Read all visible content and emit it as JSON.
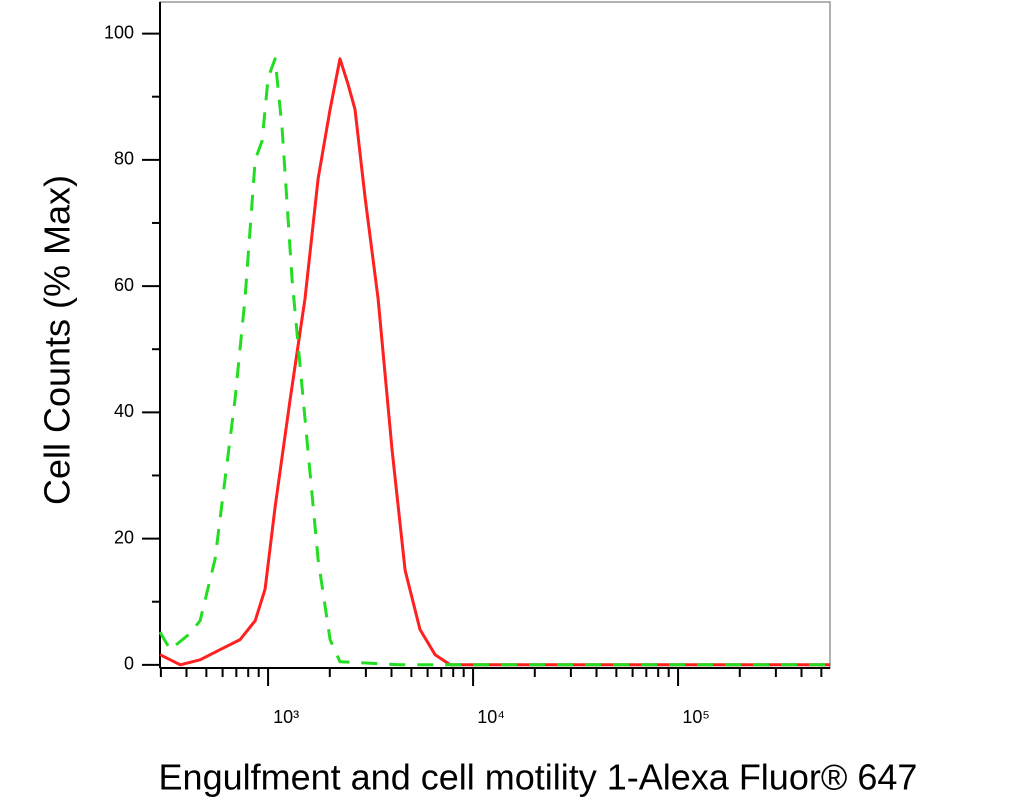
{
  "chart_data": {
    "type": "line",
    "xlabel": "Engulfment and cell motility 1-Alexa Fluor® 647",
    "ylabel": "Cell Counts (% Max)",
    "xscale": "log",
    "xlim": [
      297,
      551000
    ],
    "ylim": [
      -0.5,
      105
    ],
    "xticks": [
      {
        "value": 1000,
        "label": "10³"
      },
      {
        "value": 10000,
        "label": "10⁴"
      },
      {
        "value": 100000,
        "label": "10⁵"
      }
    ],
    "xminorticks": [
      300,
      400,
      500,
      600,
      700,
      800,
      900,
      2000,
      3000,
      4000,
      5000,
      6000,
      7000,
      8000,
      9000,
      20000,
      30000,
      40000,
      50000,
      60000,
      70000,
      80000,
      90000,
      200000,
      300000,
      400000,
      500000
    ],
    "yticks": [
      0,
      20,
      40,
      60,
      80,
      100
    ],
    "yminorticks": [
      10,
      30,
      50,
      70,
      90
    ],
    "series": [
      {
        "color": "#ff2020",
        "line_style": "solid",
        "x": [
          297,
          373,
          466,
          583,
          730,
          865,
          967,
          1082,
          1280,
          1514,
          1753,
          2006,
          2244,
          2455,
          2655,
          2972,
          3442,
          4028,
          4659,
          5511,
          6527,
          7727,
          551000
        ],
        "values": [
          1.6,
          0,
          0.8,
          2.4,
          4,
          7,
          12,
          25,
          42,
          58,
          77,
          88,
          96,
          92,
          88,
          74,
          58,
          34,
          15,
          5.6,
          1.6,
          0,
          0
        ]
      },
      {
        "color": "#22dd22",
        "line_style": "dashed",
        "x": [
          297,
          333,
          417,
          466,
          551,
          690,
          772,
          865,
          935,
          1000,
          1082,
          1171,
          1310,
          1514,
          1753,
          2006,
          2244,
          4402,
          551000
        ],
        "values": [
          5.2,
          2.4,
          5,
          7,
          16.7,
          42,
          58,
          80,
          83,
          93,
          96,
          85,
          61,
          39,
          16.7,
          4,
          0.5,
          0,
          0
        ]
      }
    ]
  }
}
